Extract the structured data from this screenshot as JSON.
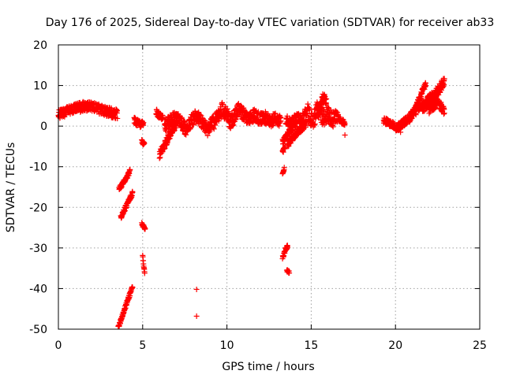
{
  "chart_data": {
    "type": "scatter",
    "title": "Day 176 of 2025, Sidereal Day-to-day VTEC variation (SDTVAR) for receiver ab33",
    "xlabel": "GPS time / hours",
    "ylabel": "SDTVAR / TECUs",
    "xlim": [
      0,
      25
    ],
    "ylim": [
      -50,
      20
    ],
    "xticks": [
      0,
      5,
      10,
      15,
      20,
      25
    ],
    "yticks": [
      -50,
      -40,
      -30,
      -20,
      -10,
      0,
      10,
      20
    ],
    "xtick_labels": [
      "0",
      "5",
      "10",
      "15",
      "20",
      "25"
    ],
    "ytick_labels": [
      "-50",
      "-40",
      "-30",
      "-20",
      "-10",
      "0",
      "10",
      "20"
    ],
    "grid": true,
    "marker": "+",
    "color": "#ff0000",
    "series": [
      {
        "name": "SDTVAR",
        "segments": [
          {
            "x0": 0.0,
            "x1": 3.5,
            "y": [
              2.8,
              3.4,
              3.6,
              4.2,
              4.5,
              4.8,
              5.0,
              4.7,
              4.3,
              3.8,
              3.5,
              3.2,
              3.0
            ],
            "spread": 1.2
          },
          {
            "x0": 4.5,
            "x1": 5.05,
            "y": [
              1.5,
              1.0,
              0.6,
              0.3,
              0.8
            ],
            "spread": 0.8
          },
          {
            "x0": 4.95,
            "x1": 5.1,
            "y": [
              -3.5,
              -4.5
            ],
            "spread": 0.6
          },
          {
            "x0": 5.8,
            "x1": 6.2,
            "y": [
              3.5,
              2.5,
              1.8
            ],
            "spread": 0.8
          },
          {
            "x0": 6.0,
            "x1": 7.0,
            "y": [
              -7.0,
              -5.0,
              -3.0,
              -1.0,
              0.5
            ],
            "spread": 1.0
          },
          {
            "x0": 6.3,
            "x1": 9.2,
            "y": [
              0.0,
              1.2,
              2.0,
              1.0,
              -0.8,
              1.5,
              2.5,
              0.5,
              -1.0,
              1.8
            ],
            "spread": 1.6
          },
          {
            "x0": 9.2,
            "x1": 11.0,
            "y": [
              0.5,
              2.5,
              4.0,
              3.0,
              1.0,
              2.5,
              4.5,
              3.0
            ],
            "spread": 1.8
          },
          {
            "x0": 11.0,
            "x1": 13.2,
            "y": [
              2.5,
              1.5,
              2.8,
              1.8,
              2.2,
              1.0,
              2.0,
              1.0
            ],
            "spread": 1.5
          },
          {
            "x0": 13.5,
            "x1": 14.5,
            "y": [
              1.5,
              0.8,
              1.5,
              2.0,
              1.0
            ],
            "spread": 1.2
          },
          {
            "x0": 13.3,
            "x1": 14.1,
            "y": [
              -4.0,
              -1.5,
              0.5
            ],
            "spread": 0.8
          },
          {
            "x0": 13.6,
            "x1": 14.7,
            "y": [
              -4.5,
              -3.0,
              -1.5,
              -0.5,
              0.5
            ],
            "spread": 0.8
          },
          {
            "x0": 14.5,
            "x1": 16.6,
            "y": [
              2.0,
              3.5,
              1.0,
              4.5,
              2.0,
              3.0,
              1.5,
              2.5
            ],
            "spread": 2.0
          },
          {
            "x0": 15.4,
            "x1": 15.9,
            "y": [
              3.0,
              5.5,
              7.5,
              6.0
            ],
            "spread": 1.0
          },
          {
            "x0": 16.6,
            "x1": 17.0,
            "y": [
              2.0,
              1.2,
              0.8
            ],
            "spread": 0.6
          },
          {
            "x0": 19.3,
            "x1": 20.2,
            "y": [
              1.5,
              1.0,
              0.5,
              0.0,
              -0.8
            ],
            "spread": 0.8
          },
          {
            "x0": 20.0,
            "x1": 21.0,
            "y": [
              -1.0,
              0.5,
              1.5,
              2.5
            ],
            "spread": 1.0
          },
          {
            "x0": 20.8,
            "x1": 21.8,
            "y": [
              2.0,
              4.0,
              7.0,
              10.5
            ],
            "spread": 0.8
          },
          {
            "x0": 21.0,
            "x1": 22.2,
            "y": [
              3.0,
              4.5,
              6.0,
              7.5
            ],
            "spread": 1.0
          },
          {
            "x0": 21.6,
            "x1": 22.9,
            "y": [
              4.5,
              5.5,
              7.0,
              9.0,
              11.0
            ],
            "spread": 1.2
          },
          {
            "x0": 22.0,
            "x1": 22.9,
            "y": [
              4.0,
              4.5,
              6.0,
              5.0,
              3.5
            ],
            "spread": 1.0
          },
          {
            "x0": 3.6,
            "x1": 4.25,
            "y": [
              -15.5,
              -14.5,
              -13.5,
              -12.5,
              -11.0
            ],
            "spread": 0.5
          },
          {
            "x0": 3.7,
            "x1": 4.4,
            "y": [
              -22.5,
              -21.0,
              -19.5,
              -18.0,
              -16.5
            ],
            "spread": 0.5
          },
          {
            "x0": 3.55,
            "x1": 4.4,
            "y": [
              -49.5,
              -47.0,
              -44.5,
              -42.0,
              -39.5
            ],
            "spread": 0.5
          },
          {
            "x0": 4.95,
            "x1": 5.15,
            "y": [
              -24.0,
              -25.5
            ],
            "spread": 0.4
          },
          {
            "x0": 5.0,
            "x1": 5.12,
            "y": [
              -32.0,
              -34.5,
              -36.0
            ],
            "spread": 0.6
          },
          {
            "x0": 13.3,
            "x1": 13.45,
            "y": [
              -6.5,
              -5.0
            ],
            "spread": 0.5
          },
          {
            "x0": 13.3,
            "x1": 13.4,
            "y": [
              -11.5,
              -10.5
            ],
            "spread": 0.3
          },
          {
            "x0": 13.3,
            "x1": 13.6,
            "y": [
              -32.5,
              -30.5,
              -29.5
            ],
            "spread": 0.5
          },
          {
            "x0": 13.55,
            "x1": 13.7,
            "y": [
              -35.5,
              -36.0
            ],
            "spread": 0.3
          }
        ],
        "points": [
          {
            "x": 8.2,
            "y": -40.2
          },
          {
            "x": 8.2,
            "y": -46.8
          },
          {
            "x": 7.5,
            "y": -2.0
          },
          {
            "x": 17.0,
            "y": -2.2
          },
          {
            "x": 20.3,
            "y": -1.5
          }
        ]
      }
    ]
  }
}
